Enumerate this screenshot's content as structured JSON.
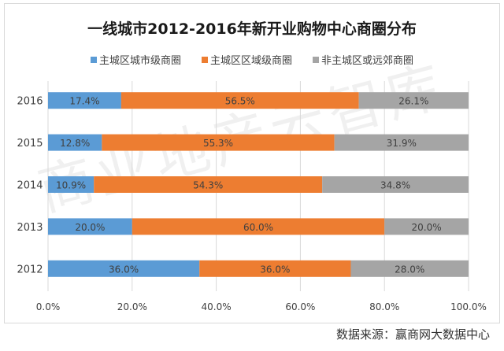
{
  "chart_data": {
    "type": "bar",
    "orientation": "horizontal-stacked-100",
    "title": "一线城市2012-2016年新开业购物中心商圈分布",
    "categories": [
      "2016",
      "2015",
      "2014",
      "2013",
      "2012"
    ],
    "series": [
      {
        "name": "主城区城市级商圈",
        "color": "#5b9bd5",
        "values": [
          17.4,
          12.8,
          10.9,
          20.0,
          36.0
        ],
        "labels": [
          "17.4%",
          "12.8%",
          "10.9%",
          "20.0%",
          "36.0%"
        ]
      },
      {
        "name": "主城区区域级商圈",
        "color": "#ed7d31",
        "values": [
          56.5,
          55.3,
          54.3,
          60.0,
          36.0
        ],
        "labels": [
          "56.5%",
          "55.3%",
          "54.3%",
          "60.0%",
          "36.0%"
        ]
      },
      {
        "name": "非主城区或远郊商圈",
        "color": "#a5a5a5",
        "values": [
          26.1,
          31.9,
          34.8,
          20.0,
          28.0
        ],
        "labels": [
          "26.1%",
          "31.9%",
          "34.8%",
          "20.0%",
          "28.0%"
        ]
      }
    ],
    "xlim": [
      0,
      100
    ],
    "xticks": [
      "0.0%",
      "20.0%",
      "40.0%",
      "60.0%",
      "80.0%",
      "100.0%"
    ],
    "grid": true,
    "legend": "top"
  },
  "source": "数据来源：赢商网大数据中心",
  "watermark": "商业地产云智库"
}
